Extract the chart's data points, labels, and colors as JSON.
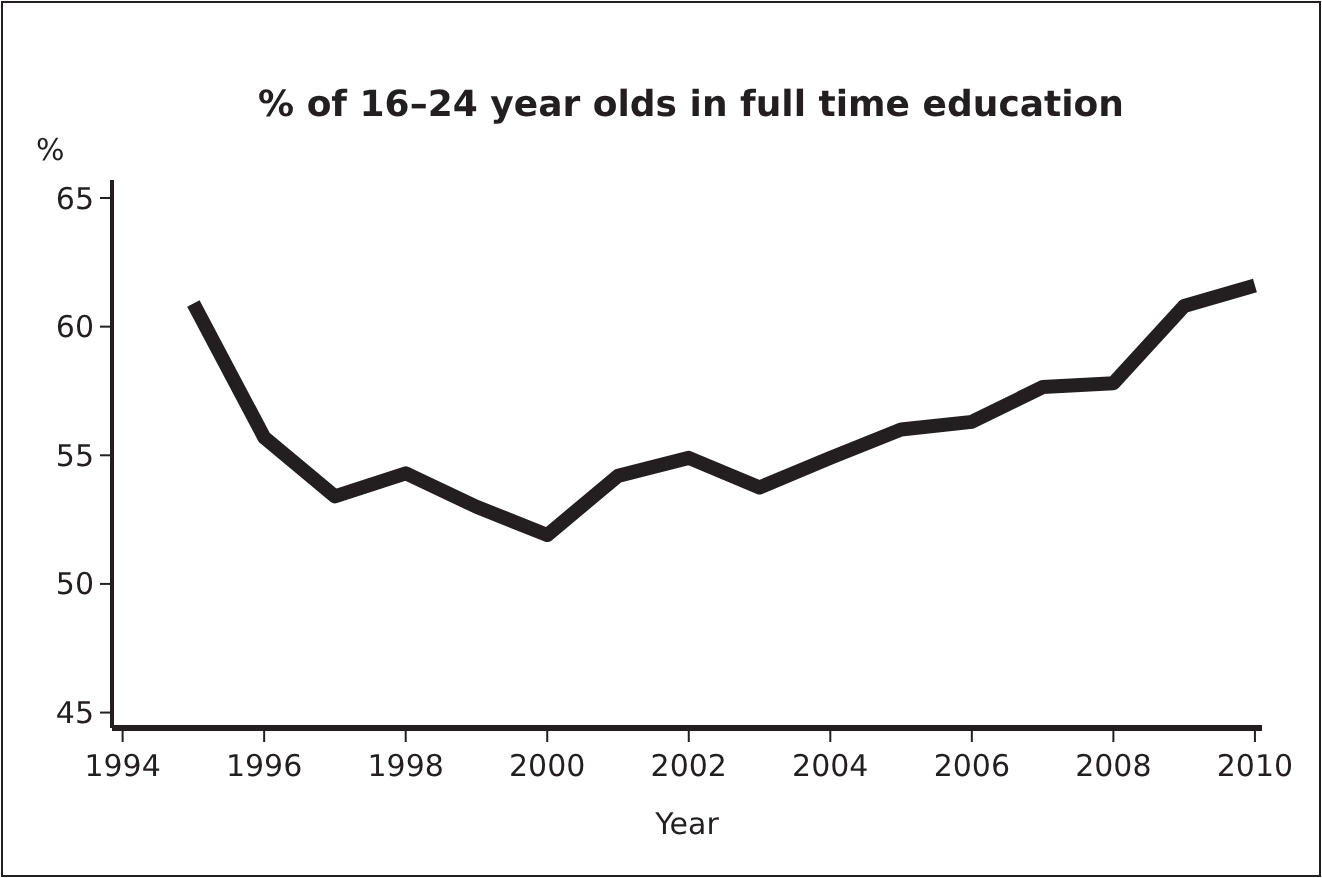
{
  "chart_data": {
    "type": "line",
    "title": "% of 16–24 year olds in full time education",
    "xlabel": "Year",
    "ylabel": "%",
    "x": [
      1995,
      1996,
      1997,
      1998,
      1999,
      2000,
      2001,
      2002,
      2003,
      2004,
      2005,
      2006,
      2007,
      2008,
      2009,
      2010
    ],
    "series": [
      {
        "color": "#231f20",
        "values": [
          60.9,
          55.7,
          53.4,
          54.3,
          53.0,
          51.9,
          54.2,
          54.9,
          53.75,
          54.9,
          56.0,
          56.3,
          57.65,
          57.8,
          60.8,
          61.6
        ]
      }
    ],
    "xlim": [
      1993.85,
      2010.1
    ],
    "ylim": [
      44.4,
      65.7
    ],
    "xticks": [
      1994,
      1996,
      1998,
      2000,
      2002,
      2004,
      2006,
      2008,
      2010
    ],
    "yticks": [
      45,
      50,
      55,
      60,
      65
    ],
    "grid": false,
    "marker": "none",
    "line_style": "solid"
  }
}
